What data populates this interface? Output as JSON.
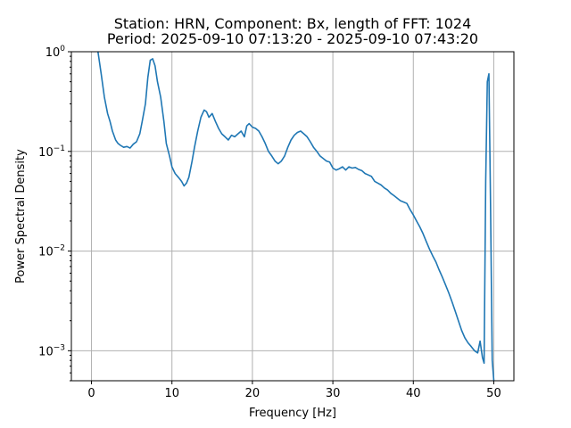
{
  "chart_data": {
    "type": "line",
    "title": "Station: HRN, Component: Bx, length of FFT: 1024",
    "subtitle": "Period: 2025-09-10 07:13:20 - 2025-09-10 07:43:20",
    "xlabel": "Frequency [Hz]",
    "ylabel": "Power Spectral Density",
    "y_scale": "log",
    "xlim": [
      -2.5,
      52.5
    ],
    "ylim": [
      0.0005,
      1
    ],
    "grid": true,
    "color": "#1f77b4",
    "x_ticks": [
      {
        "value": 0,
        "label": "0"
      },
      {
        "value": 10,
        "label": "10"
      },
      {
        "value": 20,
        "label": "20"
      },
      {
        "value": 30,
        "label": "30"
      },
      {
        "value": 40,
        "label": "40"
      },
      {
        "value": 50,
        "label": "50"
      }
    ],
    "y_ticks": [
      {
        "value": 0.001,
        "base": "10",
        "exp": "−3"
      },
      {
        "value": 0.01,
        "base": "10",
        "exp": "−2"
      },
      {
        "value": 0.1,
        "base": "10",
        "exp": "−1"
      },
      {
        "value": 1,
        "base": "10",
        "exp": "0"
      }
    ],
    "series": [
      {
        "x": [
          0.8,
          1.2,
          1.6,
          2.0,
          2.3,
          2.6,
          3.0,
          3.3,
          3.6,
          4.0,
          4.4,
          4.8,
          5.2,
          5.6,
          6.0,
          6.3,
          6.7,
          7.0,
          7.3,
          7.6,
          7.9,
          8.2,
          8.6,
          9.0,
          9.3,
          9.7,
          10.0,
          10.4,
          10.8,
          11.2,
          11.5,
          11.8,
          12.1,
          12.5,
          12.8,
          13.2,
          13.6,
          14.0,
          14.3,
          14.6,
          15.0,
          15.4,
          15.8,
          16.2,
          16.6,
          17.0,
          17.4,
          17.8,
          18.2,
          18.6,
          19.0,
          19.3,
          19.6,
          20.0,
          20.4,
          20.8,
          21.2,
          21.6,
          22.0,
          22.4,
          22.8,
          23.2,
          23.6,
          24.0,
          24.4,
          24.8,
          25.2,
          25.6,
          26.0,
          26.4,
          26.8,
          27.2,
          27.6,
          28.0,
          28.4,
          28.8,
          29.2,
          29.6,
          30.0,
          30.4,
          30.8,
          31.2,
          31.6,
          32.0,
          32.4,
          32.8,
          33.2,
          33.6,
          34.0,
          34.4,
          34.8,
          35.2,
          35.6,
          36.0,
          36.4,
          36.8,
          37.2,
          37.6,
          38.0,
          38.4,
          38.8,
          39.2,
          39.6,
          40.0,
          40.4,
          40.8,
          41.2,
          41.6,
          42.0,
          42.4,
          42.8,
          43.2,
          43.6,
          44.0,
          44.4,
          44.8,
          45.2,
          45.6,
          46.0,
          46.4,
          46.8,
          47.2,
          47.6,
          48.0,
          48.3,
          48.6,
          48.8,
          49.0,
          49.2,
          49.4,
          49.6,
          49.8,
          50.0
        ],
        "y": [
          1.0,
          0.6,
          0.35,
          0.24,
          0.2,
          0.16,
          0.13,
          0.12,
          0.115,
          0.11,
          0.112,
          0.108,
          0.118,
          0.125,
          0.15,
          0.2,
          0.3,
          0.55,
          0.82,
          0.85,
          0.72,
          0.5,
          0.35,
          0.2,
          0.12,
          0.09,
          0.07,
          0.06,
          0.055,
          0.05,
          0.045,
          0.048,
          0.055,
          0.08,
          0.11,
          0.16,
          0.22,
          0.26,
          0.25,
          0.22,
          0.24,
          0.2,
          0.17,
          0.15,
          0.14,
          0.13,
          0.145,
          0.14,
          0.15,
          0.16,
          0.14,
          0.18,
          0.19,
          0.175,
          0.17,
          0.16,
          0.14,
          0.12,
          0.1,
          0.09,
          0.08,
          0.075,
          0.08,
          0.09,
          0.11,
          0.13,
          0.145,
          0.155,
          0.16,
          0.15,
          0.14,
          0.125,
          0.11,
          0.1,
          0.09,
          0.085,
          0.08,
          0.078,
          0.068,
          0.065,
          0.067,
          0.07,
          0.065,
          0.07,
          0.068,
          0.069,
          0.066,
          0.064,
          0.06,
          0.058,
          0.056,
          0.05,
          0.048,
          0.046,
          0.043,
          0.041,
          0.038,
          0.036,
          0.034,
          0.032,
          0.031,
          0.03,
          0.026,
          0.023,
          0.02,
          0.0175,
          0.015,
          0.0125,
          0.0105,
          0.009,
          0.0078,
          0.0065,
          0.0055,
          0.0046,
          0.0038,
          0.0031,
          0.0025,
          0.002,
          0.0016,
          0.00135,
          0.0012,
          0.0011,
          0.001,
          0.00095,
          0.00125,
          0.00085,
          0.00075,
          0.05,
          0.5,
          0.6,
          0.03,
          0.0008,
          0.0005
        ]
      }
    ]
  }
}
